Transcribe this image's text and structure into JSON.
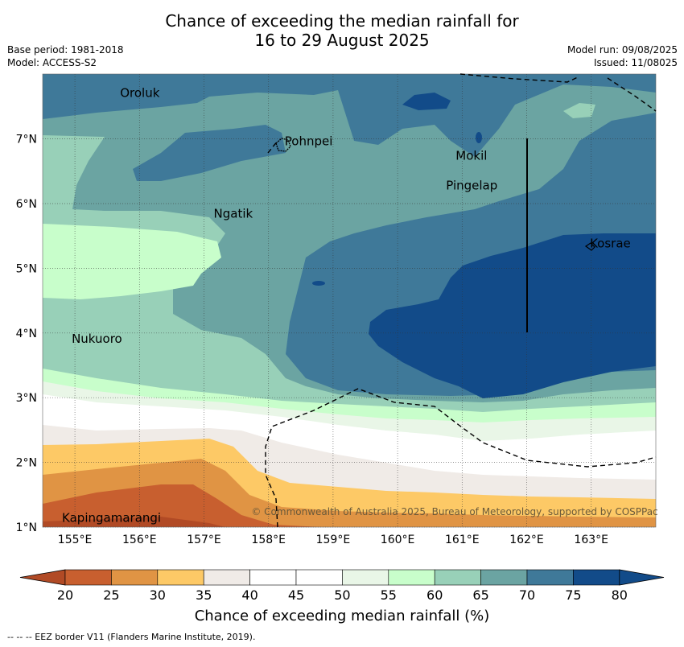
{
  "title_line1": "Chance of exceeding the median rainfall for",
  "title_line2": "16 to 29 August 2025",
  "meta_left": {
    "base_period": "Base period: 1981-2018",
    "model": "Model: ACCESS-S2"
  },
  "meta_right": {
    "model_run": "Model run: 09/08/2025",
    "issued": "Issued: 11/08025"
  },
  "copyright": "© Commonwealth of Australia 2025, Bureau of Meteorology, supported by COSPPac",
  "places": [
    {
      "name": "Oroluk",
      "lon": 155.7,
      "lat": 7.65
    },
    {
      "name": "Pohnpei",
      "lon": 158.25,
      "lat": 6.9
    },
    {
      "name": "Mokil",
      "lon": 160.9,
      "lat": 6.68
    },
    {
      "name": "Pingelap",
      "lon": 160.75,
      "lat": 6.22
    },
    {
      "name": "Ngatik",
      "lon": 157.15,
      "lat": 5.78
    },
    {
      "name": "Kosrae",
      "lon": 162.98,
      "lat": 5.32
    },
    {
      "name": "Nukuoro",
      "lon": 154.95,
      "lat": 3.85
    },
    {
      "name": "Kapingamarangi",
      "lon": 154.8,
      "lat": 1.08
    }
  ],
  "axes": {
    "lon_ticks": [
      "155°E",
      "156°E",
      "157°E",
      "158°E",
      "159°E",
      "160°E",
      "161°E",
      "162°E",
      "163°E"
    ],
    "lat_ticks": [
      "1°N",
      "2°N",
      "3°N",
      "4°N",
      "5°N",
      "6°N",
      "7°N"
    ]
  },
  "colorbar": {
    "title": "Chance of exceeding median rainfall (%)",
    "ticks": [
      "20",
      "25",
      "30",
      "35",
      "40",
      "45",
      "50",
      "55",
      "60",
      "65",
      "70",
      "75",
      "80"
    ],
    "colors": [
      "#b14a25",
      "#c85f2f",
      "#e09444",
      "#fdc966",
      "#f0ebe7",
      "#ffffff",
      "#ffffff",
      "#e9f6e7",
      "#c8fecb",
      "#98d0b8",
      "#6ba4a2",
      "#3f7999",
      "#124b89"
    ]
  },
  "footnote": "--  --  -- EEZ border V11 (Flanders Marine Institute, 2019)."
}
